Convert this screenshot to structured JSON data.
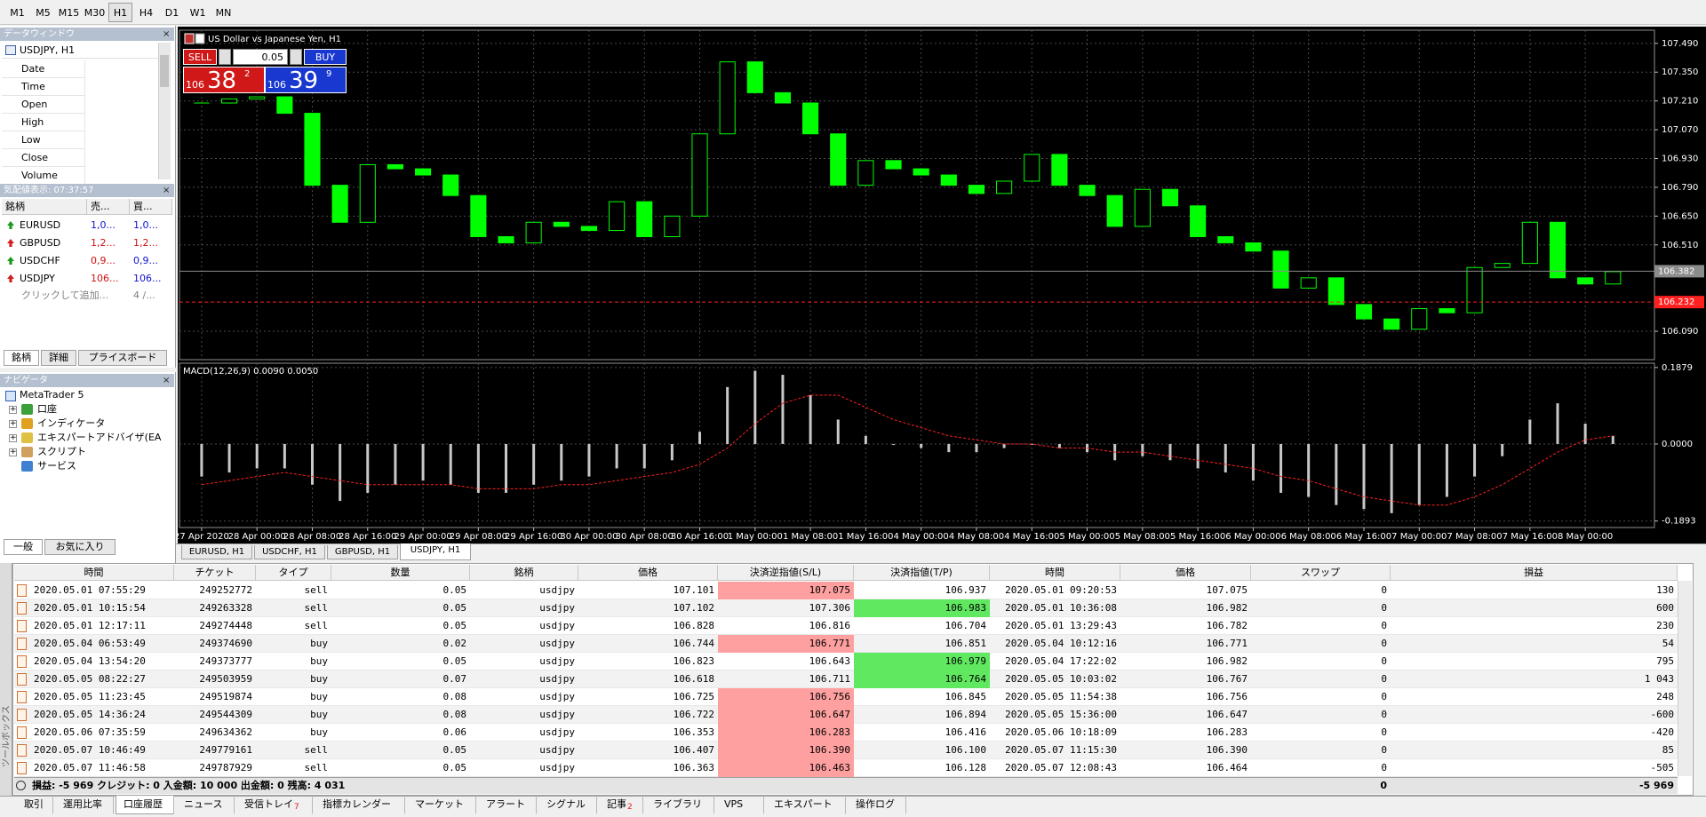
{
  "toolbar": {
    "timeframes": [
      "M1",
      "M5",
      "M15",
      "M30",
      "H1",
      "H4",
      "D1",
      "W1",
      "MN"
    ],
    "active": 4
  },
  "data_window": {
    "title": "データウィンドウ",
    "symbol": "USDJPY, H1",
    "fields": [
      "Date",
      "Time",
      "Open",
      "High",
      "Low",
      "Close",
      "Volume"
    ]
  },
  "market_watch": {
    "title": "気配値表示: 07:37:57",
    "columns": [
      "銘柄",
      "売...",
      "買..."
    ],
    "rows": [
      [
        "EURUSD",
        "1,0...",
        "1,0..."
      ],
      [
        "GBPUSD",
        "1,2...",
        "1,2..."
      ],
      [
        "USDCHF",
        "0,9...",
        "0,9..."
      ],
      [
        "USDJPY",
        "106...",
        "106..."
      ]
    ],
    "arrow_colors": [
      "#1a9a1a",
      "#d02020",
      "#1a9a1a",
      "#d02020"
    ],
    "bid_colors": [
      "#1010d0",
      "#d01010",
      "#d01010",
      "#d01010"
    ],
    "ask_colors": [
      "#1010d0",
      "#d01010",
      "#1010d0",
      "#1010d0"
    ],
    "add_row": [
      "クリックして追加...",
      "4 /..."
    ],
    "tabs": [
      "銘柄",
      "詳細",
      "プライスボード"
    ],
    "active_tab": 0
  },
  "navigator": {
    "title": "ナビゲータ",
    "root": "MetaTrader 5",
    "items": [
      "口座",
      "インディケータ",
      "エキスパートアドバイザ(EA",
      "スクリプト",
      "サービス"
    ],
    "tabs": [
      "一般",
      "お気に入り"
    ],
    "active_tab": 0
  },
  "trade_panel": {
    "sell": "SELL",
    "buy": "BUY",
    "volume": "0.05",
    "sell_price": [
      "106",
      "38",
      "2"
    ],
    "buy_price": [
      "106",
      "39",
      "9"
    ]
  },
  "chart_data": [
    {
      "type": "candlestick",
      "title": "US Dollar vs Japanese Yen, H1",
      "x_labels": [
        "27 Apr 2020",
        "28 Apr 00:00",
        "28 Apr 08:00",
        "28 Apr 16:00",
        "29 Apr 00:00",
        "29 Apr 08:00",
        "29 Apr 16:00",
        "30 Apr 00:00",
        "30 Apr 08:00",
        "30 Apr 16:00",
        "1 May 00:00",
        "1 May 08:00",
        "1 May 16:00",
        "4 May 00:00",
        "4 May 08:00",
        "4 May 16:00",
        "5 May 00:00",
        "5 May 08:00",
        "5 May 16:00",
        "6 May 00:00",
        "6 May 08:00",
        "6 May 16:00",
        "7 May 00:00",
        "7 May 08:00",
        "7 May 16:00",
        "8 May 00:00"
      ],
      "close": [
        107.2,
        107.22,
        107.23,
        107.15,
        106.8,
        106.62,
        106.9,
        106.88,
        106.85,
        106.75,
        106.55,
        106.52,
        106.62,
        106.6,
        106.58,
        106.72,
        106.55,
        106.65,
        107.05,
        107.4,
        107.25,
        107.2,
        107.05,
        106.8,
        106.92,
        106.88,
        106.85,
        106.8,
        106.76,
        106.82,
        106.95,
        106.8,
        106.75,
        106.6,
        106.78,
        106.7,
        106.55,
        106.52,
        106.48,
        106.3,
        106.35,
        106.22,
        106.15,
        106.1,
        106.2,
        106.18,
        106.4,
        106.42,
        106.62,
        106.35,
        106.32,
        106.38
      ],
      "ylim": [
        105.952,
        107.554
      ],
      "yticks": [
        {
          "value": 107.49,
          "label": "107.490"
        },
        {
          "value": 107.35,
          "label": "107.350"
        },
        {
          "value": 107.21,
          "label": "107.210"
        },
        {
          "value": 107.07,
          "label": "107.070"
        },
        {
          "value": 106.93,
          "label": "106.930"
        },
        {
          "value": 106.79,
          "label": "106.790"
        },
        {
          "value": 106.65,
          "label": "106.650"
        },
        {
          "value": 106.51,
          "label": "106.510"
        },
        {
          "value": 106.09,
          "label": "106.090"
        }
      ],
      "bid": 106.382,
      "level": 106.232,
      "grid": true,
      "up_color": "#00ff00",
      "down_color": "#00ff00",
      "bid_color": "#8c8c8c",
      "level_color": "#ff2020"
    },
    {
      "type": "macd",
      "title": "MACD(12,26,9) 0.0090 0.0050",
      "values": [
        -0.08,
        -0.07,
        -0.06,
        -0.06,
        -0.1,
        -0.14,
        -0.12,
        -0.1,
        -0.09,
        -0.1,
        -0.12,
        -0.12,
        -0.1,
        -0.09,
        -0.08,
        -0.06,
        -0.06,
        -0.04,
        0.03,
        0.14,
        0.18,
        0.17,
        0.12,
        0.06,
        0.02,
        0.0,
        -0.01,
        -0.02,
        -0.02,
        -0.01,
        0.0,
        -0.01,
        -0.02,
        -0.04,
        -0.03,
        -0.04,
        -0.06,
        -0.07,
        -0.09,
        -0.12,
        -0.13,
        -0.15,
        -0.16,
        -0.17,
        -0.15,
        -0.13,
        -0.08,
        -0.03,
        0.06,
        0.1,
        0.05,
        0.02
      ],
      "signal": [
        -0.1,
        -0.09,
        -0.08,
        -0.07,
        -0.08,
        -0.09,
        -0.1,
        -0.1,
        -0.1,
        -0.1,
        -0.11,
        -0.11,
        -0.11,
        -0.1,
        -0.1,
        -0.09,
        -0.08,
        -0.07,
        -0.05,
        -0.01,
        0.05,
        0.1,
        0.12,
        0.12,
        0.09,
        0.06,
        0.04,
        0.02,
        0.01,
        0.0,
        0.0,
        -0.01,
        -0.01,
        -0.02,
        -0.02,
        -0.03,
        -0.04,
        -0.05,
        -0.06,
        -0.08,
        -0.09,
        -0.11,
        -0.13,
        -0.14,
        -0.15,
        -0.15,
        -0.13,
        -0.1,
        -0.06,
        -0.02,
        0.01,
        0.02
      ],
      "ylim": [
        -0.2052,
        0.1985
      ],
      "yticks": [
        0.1879,
        {
          "value": 0,
          "label": "0.0000"
        },
        -0.1893
      ],
      "color": "#c8c8c8",
      "signal_color": "#ff2020"
    }
  ],
  "chart_tabs": {
    "tabs": [
      "EURUSD, H1",
      "USDCHF, H1",
      "GBPUSD, H1",
      "USDJPY, H1"
    ],
    "active": 3
  },
  "history_table": {
    "columns": [
      "時間",
      "チケット",
      "タイプ",
      "数量",
      "銘柄",
      "価格",
      "決済逆指値(S/L)",
      "決済指値(T/P)",
      "時間",
      "価格",
      "スワップ",
      "損益"
    ],
    "rows": [
      {
        "cells": [
          "2020.05.01 07:55:29",
          "249252772",
          "sell",
          "0.05",
          "usdjpy",
          "107.101",
          "107.075",
          "106.937",
          "2020.05.01 09:20:53",
          "107.075",
          "0",
          "130"
        ],
        "hit": "sl"
      },
      {
        "cells": [
          "2020.05.01 10:15:54",
          "249263328",
          "sell",
          "0.05",
          "usdjpy",
          "107.102",
          "107.306",
          "106.983",
          "2020.05.01 10:36:08",
          "106.982",
          "0",
          "600"
        ],
        "hit": "tp"
      },
      {
        "cells": [
          "2020.05.01 12:17:11",
          "249274448",
          "sell",
          "0.05",
          "usdjpy",
          "106.828",
          "106.816",
          "106.704",
          "2020.05.01 13:29:43",
          "106.782",
          "0",
          "230"
        ]
      },
      {
        "cells": [
          "2020.05.04 06:53:49",
          "249374690",
          "buy",
          "0.02",
          "usdjpy",
          "106.744",
          "106.771",
          "106.851",
          "2020.05.04 10:12:16",
          "106.771",
          "0",
          "54"
        ],
        "hit": "sl"
      },
      {
        "cells": [
          "2020.05.04 13:54:20",
          "249373777",
          "buy",
          "0.05",
          "usdjpy",
          "106.823",
          "106.643",
          "106.979",
          "2020.05.04 17:22:02",
          "106.982",
          "0",
          "795"
        ],
        "hit": "tp"
      },
      {
        "cells": [
          "2020.05.05 08:22:27",
          "249503959",
          "buy",
          "0.07",
          "usdjpy",
          "106.618",
          "106.711",
          "106.764",
          "2020.05.05 10:03:02",
          "106.767",
          "0",
          "1 043"
        ],
        "hit": "tp"
      },
      {
        "cells": [
          "2020.05.05 11:23:45",
          "249519874",
          "buy",
          "0.08",
          "usdjpy",
          "106.725",
          "106.756",
          "106.845",
          "2020.05.05 11:54:38",
          "106.756",
          "0",
          "248"
        ],
        "hit": "sl"
      },
      {
        "cells": [
          "2020.05.05 14:36:24",
          "249544309",
          "buy",
          "0.08",
          "usdjpy",
          "106.722",
          "106.647",
          "106.894",
          "2020.05.05 15:36:00",
          "106.647",
          "0",
          "-600"
        ],
        "hit": "sl"
      },
      {
        "cells": [
          "2020.05.06 07:35:59",
          "249634362",
          "buy",
          "0.06",
          "usdjpy",
          "106.353",
          "106.283",
          "106.416",
          "2020.05.06 10:18:09",
          "106.283",
          "0",
          "-420"
        ],
        "hit": "sl"
      },
      {
        "cells": [
          "2020.05.07 10:46:49",
          "249779161",
          "sell",
          "0.05",
          "usdjpy",
          "106.407",
          "106.390",
          "106.100",
          "2020.05.07 11:15:30",
          "106.390",
          "0",
          "85"
        ],
        "hit": "sl"
      },
      {
        "cells": [
          "2020.05.07 11:46:58",
          "249787929",
          "sell",
          "0.05",
          "usdjpy",
          "106.363",
          "106.463",
          "106.128",
          "2020.05.07 12:08:43",
          "106.464",
          "0",
          "-505"
        ],
        "hit": "sl"
      }
    ],
    "summary": "損益: -5 969  クレジット: 0  入金額: 10 000  出金額: 0  残高: 4 031",
    "summary_swap": "0",
    "summary_profit": "-5 969",
    "sl_color": "#ffa0a0",
    "tp_color": "#60e860"
  },
  "toolbox_label": "ツールボックス",
  "bottom_tabs": {
    "tabs": [
      {
        "label": "取引"
      },
      {
        "label": "運用比率"
      },
      {
        "label": "口座履歴"
      },
      {
        "label": "ニュース"
      },
      {
        "label": "受信トレイ",
        "badge": "7"
      },
      {
        "label": "指標カレンダー"
      },
      {
        "label": "マーケット"
      },
      {
        "label": "アラート"
      },
      {
        "label": "シグナル"
      },
      {
        "label": "記事",
        "badge": "2"
      },
      {
        "label": "ライブラリ"
      },
      {
        "label": "VPS"
      },
      {
        "label": "エキスパート"
      },
      {
        "label": "操作ログ"
      }
    ],
    "active": 2
  }
}
